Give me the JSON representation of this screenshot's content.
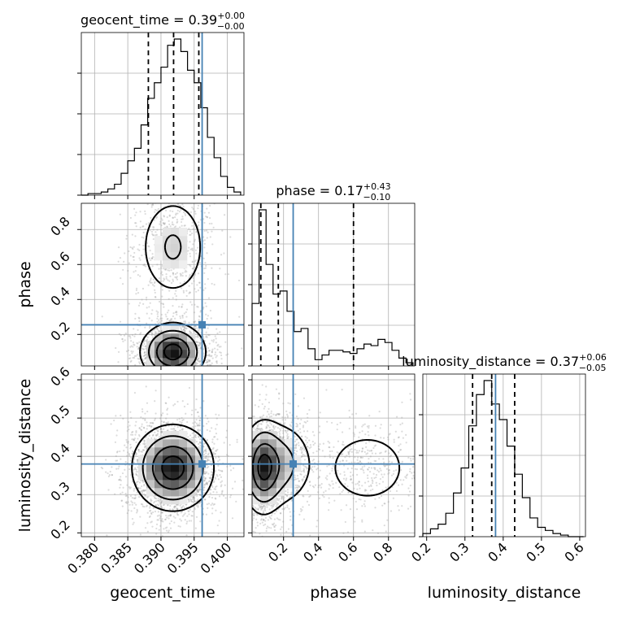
{
  "chart_data": {
    "type": "corner",
    "parameters": [
      "geocent_time",
      "phase",
      "luminosity_distance"
    ],
    "axis_labels": {
      "geocent_time": "geocent_time",
      "phase": "phase",
      "luminosity_distance": "luminosity_distance"
    },
    "titles": {
      "geocent_time": {
        "prefix": "geocent_time = 0.39",
        "sup": "+0.00",
        "sub": "−0.00"
      },
      "phase": {
        "prefix": "phase = 0.17",
        "sup": "+0.43",
        "sub": "−0.10"
      },
      "luminosity_distance": {
        "prefix": "luminosity_distance = 0.37",
        "sup": "+0.06",
        "sub": "−0.05"
      }
    },
    "ranges": {
      "geocent_time": [
        0.378,
        0.4025
      ],
      "phase": [
        0.02,
        0.95
      ],
      "luminosity_distance": [
        0.19,
        0.615
      ]
    },
    "ticks": {
      "geocent_time": {
        "values": [
          0.38,
          0.385,
          0.39,
          0.395,
          0.4
        ],
        "labels": [
          "0.380",
          "0.385",
          "0.390",
          "0.395",
          "0.400"
        ]
      },
      "phase": {
        "values": [
          0.2,
          0.4,
          0.6,
          0.8
        ],
        "labels": [
          "0.2",
          "0.4",
          "0.6",
          "0.8"
        ]
      },
      "luminosity_distance": {
        "values": [
          0.2,
          0.3,
          0.4,
          0.5,
          0.6
        ],
        "labels": [
          "0.2",
          "0.3",
          "0.4",
          "0.5",
          "0.6"
        ]
      }
    },
    "truths": {
      "geocent_time": 0.3962,
      "phase": 0.255,
      "luminosity_distance": 0.38
    },
    "quantiles": {
      "geocent_time": [
        0.3881,
        0.3919,
        0.3957
      ],
      "phase": [
        0.07,
        0.17,
        0.6
      ],
      "luminosity_distance": [
        0.32,
        0.37,
        0.43
      ]
    },
    "histograms": {
      "geocent_time": {
        "edges": [
          0.378,
          0.379,
          0.38,
          0.381,
          0.382,
          0.383,
          0.384,
          0.385,
          0.386,
          0.387,
          0.388,
          0.389,
          0.39,
          0.391,
          0.392,
          0.393,
          0.394,
          0.395,
          0.396,
          0.397,
          0.398,
          0.399,
          0.4,
          0.401,
          0.402
        ],
        "counts": [
          0.0,
          0.01,
          0.01,
          0.02,
          0.04,
          0.07,
          0.14,
          0.22,
          0.3,
          0.45,
          0.62,
          0.72,
          0.82,
          0.96,
          1.0,
          0.92,
          0.8,
          0.72,
          0.56,
          0.37,
          0.24,
          0.12,
          0.05,
          0.02
        ]
      },
      "phase": {
        "edges": [
          0.02,
          0.06,
          0.1,
          0.14,
          0.18,
          0.22,
          0.26,
          0.3,
          0.34,
          0.38,
          0.42,
          0.46,
          0.5,
          0.54,
          0.58,
          0.62,
          0.66,
          0.7,
          0.74,
          0.78,
          0.82,
          0.86,
          0.9,
          0.94
        ],
        "counts": [
          0.4,
          1.0,
          0.65,
          0.46,
          0.48,
          0.35,
          0.22,
          0.24,
          0.11,
          0.04,
          0.07,
          0.1,
          0.1,
          0.09,
          0.08,
          0.11,
          0.14,
          0.13,
          0.17,
          0.15,
          0.1,
          0.05,
          0.02
        ]
      },
      "luminosity_distance": {
        "edges": [
          0.19,
          0.21,
          0.23,
          0.25,
          0.27,
          0.29,
          0.31,
          0.33,
          0.35,
          0.37,
          0.39,
          0.41,
          0.43,
          0.45,
          0.47,
          0.49,
          0.51,
          0.53,
          0.55,
          0.57,
          0.59,
          0.61
        ],
        "counts": [
          0.02,
          0.05,
          0.08,
          0.15,
          0.28,
          0.44,
          0.71,
          0.91,
          1.0,
          0.85,
          0.75,
          0.58,
          0.4,
          0.25,
          0.12,
          0.06,
          0.04,
          0.02,
          0.01,
          0.0,
          0.0
        ]
      }
    },
    "densities": {
      "geocent_time|phase": {
        "components": [
          {
            "cx": 0.3918,
            "cy": 0.1,
            "sx": 0.0024,
            "sy": 0.08,
            "w": 1.0
          },
          {
            "cx": 0.3918,
            "cy": 0.7,
            "sx": 0.0028,
            "sy": 0.16,
            "w": 0.35
          }
        ]
      },
      "geocent_time|luminosity_distance": {
        "components": [
          {
            "cx": 0.3918,
            "cy": 0.37,
            "sx": 0.003,
            "sy": 0.055,
            "w": 1.0
          }
        ]
      },
      "phase|luminosity_distance": {
        "components": [
          {
            "cx": 0.08,
            "cy": 0.37,
            "sx": 0.06,
            "sy": 0.06,
            "w": 1.0
          },
          {
            "cx": 0.2,
            "cy": 0.38,
            "sx": 0.09,
            "sy": 0.06,
            "w": 0.45
          },
          {
            "cx": 0.68,
            "cy": 0.37,
            "sx": 0.15,
            "sy": 0.06,
            "w": 0.3
          }
        ]
      }
    }
  }
}
